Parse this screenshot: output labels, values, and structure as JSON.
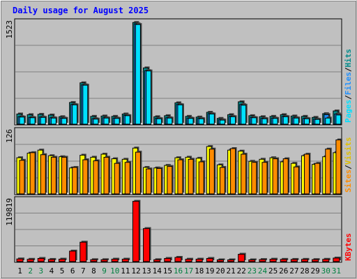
{
  "title": "Daily usage for August 2025",
  "colors": {
    "background": "#c0c0c0",
    "title": "#0000ff",
    "grid": "#808080",
    "hits": "#008b8b",
    "files": "#1e90ff",
    "pages": "#00e0ff",
    "visits": "#ffff00",
    "sites": "#ff8c00",
    "kbytes": "#ff0000",
    "weekend_label": "#008040",
    "weekday_label": "#000000"
  },
  "labels": {
    "hits": "Hits",
    "files": "Files",
    "pages": "Pages",
    "visits": "Visits",
    "sites": "Sites",
    "kbytes": "KBytes",
    "separator": "/"
  },
  "chart_data": [
    {
      "type": "bar",
      "panel": "hits_files_pages",
      "ymax_label": "1523",
      "ylim": [
        0,
        1523
      ],
      "x": [
        1,
        2,
        3,
        4,
        5,
        6,
        7,
        8,
        9,
        10,
        11,
        12,
        13,
        14,
        15,
        16,
        17,
        18,
        19,
        20,
        21,
        22,
        23,
        24,
        25,
        26,
        27,
        28,
        29,
        30,
        31
      ],
      "series": [
        {
          "name": "Hits",
          "values": [
            150,
            140,
            145,
            135,
            110,
            320,
            610,
            115,
            120,
            115,
            150,
            1500,
            830,
            110,
            125,
            315,
            115,
            105,
            175,
            85,
            140,
            330,
            125,
            110,
            115,
            140,
            120,
            115,
            100,
            155,
            195
          ]
        },
        {
          "name": "Files",
          "values": [
            110,
            100,
            105,
            95,
            90,
            290,
            580,
            80,
            95,
            90,
            130,
            1480,
            790,
            85,
            95,
            290,
            90,
            85,
            155,
            65,
            115,
            290,
            100,
            85,
            90,
            115,
            95,
            85,
            75,
            140,
            150
          ]
        },
        {
          "name": "Pages",
          "values": [
            105,
            95,
            100,
            90,
            85,
            285,
            575,
            75,
            90,
            85,
            125,
            1470,
            785,
            80,
            90,
            285,
            85,
            80,
            150,
            60,
            110,
            280,
            95,
            80,
            85,
            110,
            90,
            80,
            70,
            90,
            135
          ]
        }
      ]
    },
    {
      "type": "bar",
      "panel": "visits_sites",
      "ymax_label": "126",
      "ylim": [
        0,
        126
      ],
      "x": [
        1,
        2,
        3,
        4,
        5,
        6,
        7,
        8,
        9,
        10,
        11,
        12,
        13,
        14,
        15,
        16,
        17,
        18,
        19,
        20,
        21,
        22,
        23,
        24,
        25,
        26,
        27,
        28,
        29,
        30,
        31
      ],
      "series": [
        {
          "name": "Visits",
          "values": [
            71,
            80,
            86,
            75,
            73,
            51,
            76,
            72,
            78,
            69,
            68,
            90,
            52,
            51,
            56,
            71,
            72,
            70,
            93,
            57,
            86,
            84,
            64,
            68,
            71,
            63,
            60,
            75,
            58,
            73,
            81
          ]
        },
        {
          "name": "Sites",
          "values": [
            66,
            81,
            77,
            72,
            72,
            52,
            67,
            65,
            72,
            60,
            62,
            82,
            49,
            50,
            54,
            67,
            68,
            63,
            88,
            52,
            89,
            78,
            62,
            62,
            69,
            69,
            53,
            78,
            60,
            88,
            106
          ]
        }
      ]
    },
    {
      "type": "bar",
      "panel": "kbytes",
      "ymax_label": "119819",
      "ylim": [
        0,
        119819
      ],
      "x": [
        1,
        2,
        3,
        4,
        5,
        6,
        7,
        8,
        9,
        10,
        11,
        12,
        13,
        14,
        15,
        16,
        17,
        18,
        19,
        20,
        21,
        22,
        23,
        24,
        25,
        26,
        27,
        28,
        29,
        30,
        31
      ],
      "series": [
        {
          "name": "KBytes",
          "values": [
            5000,
            4300,
            6000,
            4100,
            4600,
            20000,
            37000,
            3600,
            3600,
            4600,
            4600,
            115000,
            63000,
            3600,
            6000,
            8000,
            4500,
            4600,
            6000,
            3300,
            3300,
            14000,
            3300,
            3900,
            4500,
            4200,
            4100,
            4200,
            3800,
            4300,
            6700
          ]
        }
      ]
    }
  ],
  "x_axis": {
    "labels": [
      "1",
      "2",
      "3",
      "4",
      "5",
      "6",
      "7",
      "8",
      "9",
      "10",
      "11",
      "12",
      "13",
      "14",
      "15",
      "16",
      "17",
      "18",
      "19",
      "20",
      "21",
      "22",
      "23",
      "24",
      "25",
      "26",
      "27",
      "28",
      "29",
      "30",
      "31"
    ],
    "weekend": [
      2,
      3,
      9,
      10,
      16,
      17,
      23,
      24,
      30,
      31
    ]
  }
}
